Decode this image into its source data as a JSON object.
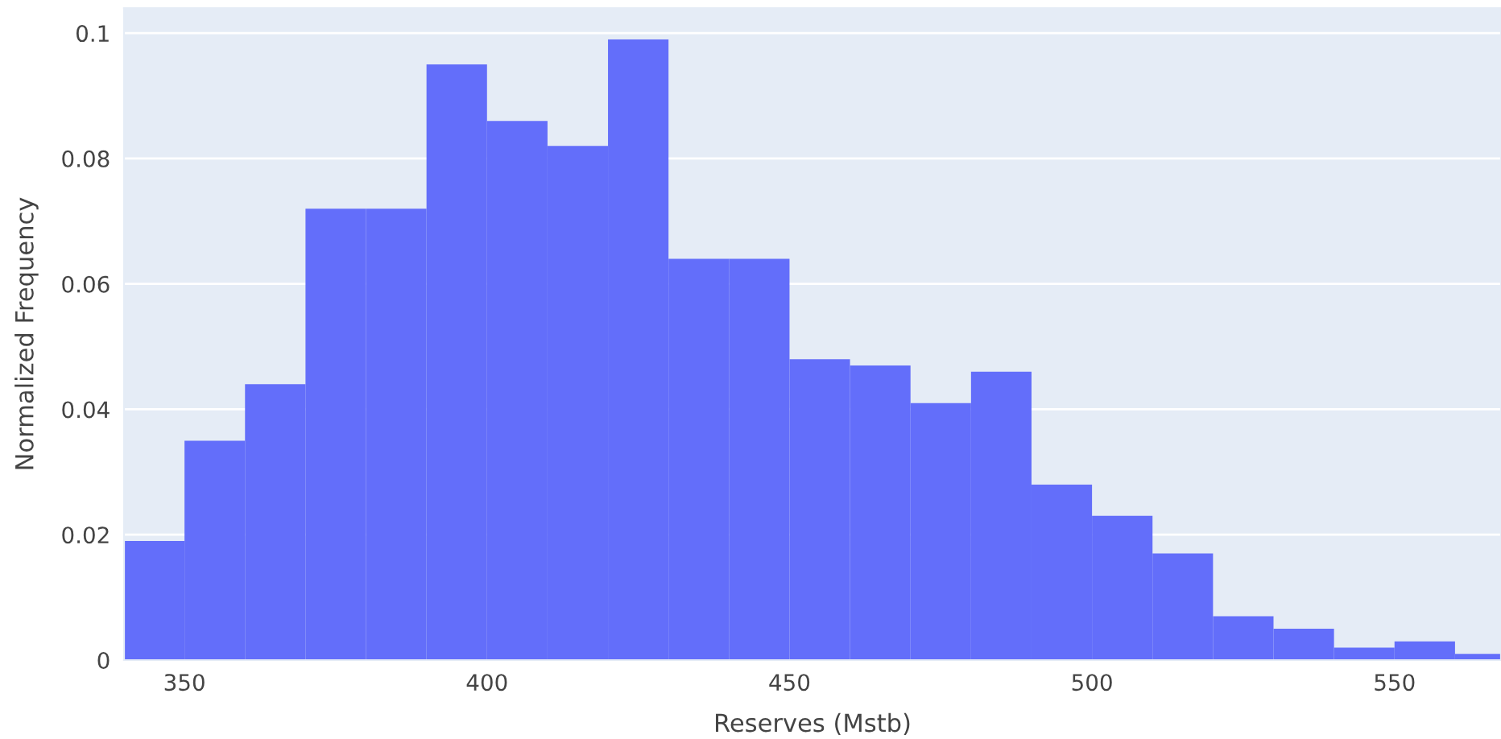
{
  "chart_data": {
    "type": "histogram",
    "xlabel": "Reserves (Mstb)",
    "ylabel": "Normalized Frequency",
    "bins": [
      340,
      350,
      360,
      370,
      380,
      390,
      400,
      410,
      420,
      430,
      440,
      450,
      460,
      470,
      480,
      490,
      500,
      510,
      520,
      530,
      540,
      550,
      560,
      570
    ],
    "values": [
      0.019,
      0.035,
      0.044,
      0.072,
      0.072,
      0.095,
      0.086,
      0.082,
      0.099,
      0.064,
      0.064,
      0.048,
      0.047,
      0.041,
      0.046,
      0.028,
      0.023,
      0.017,
      0.007,
      0.005,
      0.002,
      0.003,
      0.001
    ],
    "color": "#636efa",
    "xlim": [
      340,
      567.6
    ],
    "xticks": [
      350,
      400,
      450,
      500,
      550
    ],
    "ylim": [
      0,
      0.104
    ],
    "yticks": [
      0,
      0.02,
      0.04,
      0.06,
      0.08,
      0.1
    ],
    "grid": "y"
  }
}
